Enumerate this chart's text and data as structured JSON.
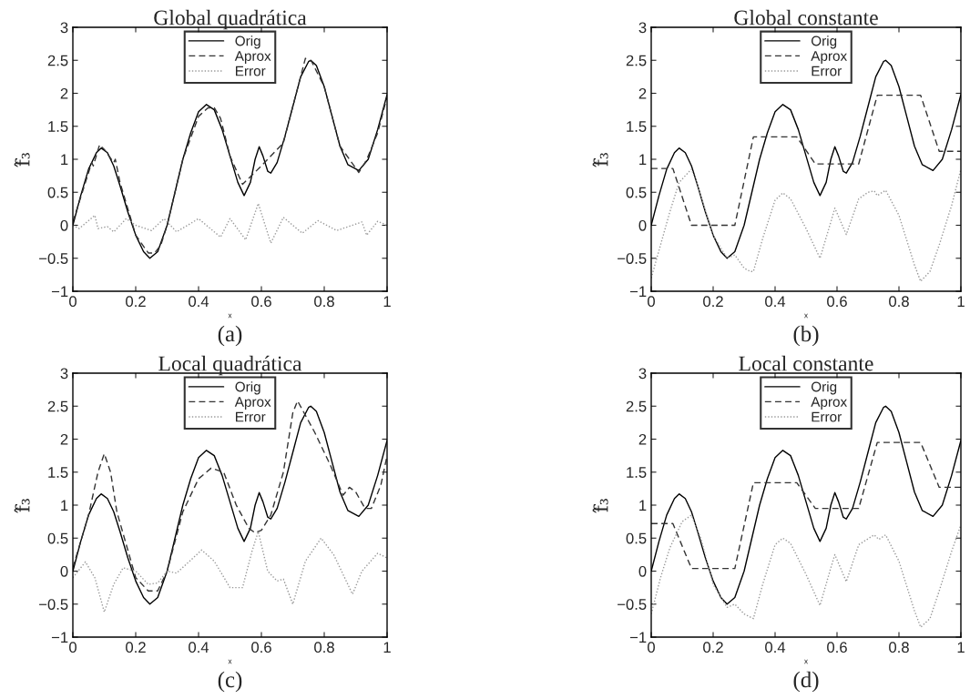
{
  "chart_data": [
    {
      "type": "line",
      "title": "Global quadrática",
      "ylabel": "f̂₃",
      "xlabel": "x",
      "annotations": [
        "(a)"
      ],
      "legend": "top",
      "grid": false,
      "xlim": [
        0,
        1
      ],
      "ylim": [
        -1,
        3
      ],
      "xticks": [
        0,
        0.2,
        0.4,
        0.6,
        0.8,
        1
      ],
      "yticks": [
        -1,
        -0.5,
        0,
        0.5,
        1,
        1.5,
        2,
        2.5,
        3
      ],
      "series": [
        {
          "name": "Orig",
          "color": "#000000",
          "line_style": "solid",
          "x": [
            0,
            0.025,
            0.05,
            0.075,
            0.09,
            0.11,
            0.13,
            0.15,
            0.175,
            0.2,
            0.225,
            0.245,
            0.27,
            0.3,
            0.325,
            0.35,
            0.375,
            0.4,
            0.425,
            0.45,
            0.475,
            0.5,
            0.525,
            0.545,
            0.565,
            0.58,
            0.593,
            0.605,
            0.62,
            0.63,
            0.65,
            0.675,
            0.7,
            0.725,
            0.75,
            0.757,
            0.775,
            0.8,
            0.825,
            0.85,
            0.875,
            0.91,
            0.94,
            0.97,
            1.0
          ],
          "values": [
            0.0,
            0.45,
            0.85,
            1.1,
            1.17,
            1.1,
            0.9,
            0.6,
            0.2,
            -0.15,
            -0.4,
            -0.5,
            -0.4,
            0.0,
            0.5,
            1.0,
            1.4,
            1.72,
            1.83,
            1.75,
            1.45,
            1.05,
            0.65,
            0.45,
            0.65,
            1.0,
            1.19,
            1.05,
            0.82,
            0.79,
            0.95,
            1.35,
            1.8,
            2.25,
            2.48,
            2.5,
            2.42,
            2.1,
            1.65,
            1.2,
            0.92,
            0.83,
            1.0,
            1.45,
            1.98
          ]
        },
        {
          "name": "Aprox",
          "color": "#333333",
          "line_style": "dashed",
          "x": [
            0,
            0.03,
            0.06,
            0.065,
            0.085,
            0.1,
            0.13,
            0.135,
            0.15,
            0.2,
            0.24,
            0.26,
            0.28,
            0.3,
            0.35,
            0.4,
            0.43,
            0.45,
            0.47,
            0.5,
            0.54,
            0.6,
            0.67,
            0.7,
            0.74,
            0.76,
            0.8,
            0.85,
            0.91,
            0.93,
            0.94,
            0.97,
            1.0
          ],
          "values": [
            0.05,
            0.5,
            0.95,
            0.9,
            1.22,
            1.15,
            0.95,
            1.0,
            0.65,
            -0.15,
            -0.42,
            -0.42,
            -0.3,
            0.0,
            1.0,
            1.65,
            1.78,
            1.78,
            1.62,
            1.05,
            0.62,
            0.9,
            1.25,
            1.8,
            2.53,
            2.48,
            2.1,
            1.2,
            0.8,
            0.95,
            1.05,
            1.4,
            1.95
          ]
        },
        {
          "name": "Error",
          "color": "#999999",
          "line_style": "dotted",
          "x": [
            0,
            0.02,
            0.07,
            0.08,
            0.11,
            0.13,
            0.17,
            0.2,
            0.25,
            0.29,
            0.33,
            0.4,
            0.47,
            0.5,
            0.55,
            0.59,
            0.63,
            0.67,
            0.73,
            0.78,
            0.84,
            0.92,
            0.935,
            0.97,
            1.0
          ],
          "values": [
            0.0,
            -0.05,
            0.15,
            -0.05,
            -0.02,
            -0.1,
            0.1,
            0.0,
            -0.08,
            0.1,
            -0.1,
            0.1,
            -0.18,
            0.1,
            -0.22,
            0.33,
            -0.27,
            0.12,
            -0.12,
            0.07,
            -0.08,
            0.05,
            -0.15,
            0.06,
            0.0
          ]
        }
      ]
    },
    {
      "type": "line",
      "title": "Global constante",
      "ylabel": "f̂₃",
      "xlabel": "x",
      "annotations": [
        "(b)"
      ],
      "legend": "top",
      "grid": false,
      "xlim": [
        0,
        1
      ],
      "ylim": [
        -1,
        3
      ],
      "xticks": [
        0,
        0.2,
        0.4,
        0.6,
        0.8,
        1
      ],
      "yticks": [
        -1,
        -0.5,
        0,
        0.5,
        1,
        1.5,
        2,
        2.5,
        3
      ],
      "series": [
        {
          "name": "Orig",
          "color": "#000000",
          "line_style": "solid",
          "x": [
            0,
            0.025,
            0.05,
            0.075,
            0.09,
            0.11,
            0.13,
            0.15,
            0.175,
            0.2,
            0.225,
            0.245,
            0.27,
            0.3,
            0.325,
            0.35,
            0.375,
            0.4,
            0.425,
            0.45,
            0.475,
            0.5,
            0.525,
            0.545,
            0.565,
            0.58,
            0.593,
            0.605,
            0.62,
            0.63,
            0.65,
            0.675,
            0.7,
            0.725,
            0.75,
            0.757,
            0.775,
            0.8,
            0.825,
            0.85,
            0.875,
            0.91,
            0.94,
            0.97,
            1.0
          ],
          "values": [
            0.0,
            0.45,
            0.85,
            1.1,
            1.17,
            1.1,
            0.9,
            0.6,
            0.2,
            -0.15,
            -0.4,
            -0.5,
            -0.4,
            0.0,
            0.5,
            1.0,
            1.4,
            1.72,
            1.83,
            1.75,
            1.45,
            1.05,
            0.65,
            0.45,
            0.65,
            1.0,
            1.19,
            1.05,
            0.82,
            0.79,
            0.95,
            1.35,
            1.8,
            2.25,
            2.48,
            2.5,
            2.42,
            2.1,
            1.65,
            1.2,
            0.92,
            0.83,
            1.0,
            1.45,
            1.98
          ]
        },
        {
          "name": "Aprox",
          "color": "#333333",
          "line_style": "dashed",
          "x": [
            0,
            0.07,
            0.13,
            0.27,
            0.33,
            0.47,
            0.53,
            0.67,
            0.73,
            0.87,
            0.93,
            1.0
          ],
          "values": [
            0.86,
            0.86,
            0.0,
            0.0,
            1.34,
            1.34,
            0.93,
            0.93,
            1.97,
            1.97,
            1.12,
            1.12
          ]
        },
        {
          "name": "Error",
          "color": "#999999",
          "line_style": "dotted",
          "x": [
            0,
            0.03,
            0.06,
            0.09,
            0.13,
            0.15,
            0.2,
            0.245,
            0.27,
            0.3,
            0.32,
            0.33,
            0.36,
            0.4,
            0.425,
            0.45,
            0.5,
            0.545,
            0.58,
            0.593,
            0.63,
            0.67,
            0.7,
            0.72,
            0.73,
            0.757,
            0.8,
            0.85,
            0.87,
            0.9,
            0.93,
            0.97,
            1.0
          ],
          "values": [
            -0.8,
            -0.3,
            0.2,
            0.65,
            0.85,
            0.6,
            -0.15,
            -0.5,
            -0.45,
            -0.65,
            -0.7,
            -0.7,
            -0.2,
            0.38,
            0.49,
            0.4,
            -0.05,
            -0.5,
            0.05,
            0.26,
            -0.14,
            0.4,
            0.5,
            0.52,
            0.45,
            0.53,
            0.15,
            -0.6,
            -0.85,
            -0.7,
            -0.3,
            0.3,
            0.85
          ]
        }
      ]
    },
    {
      "type": "line",
      "title": "Local quadrática",
      "ylabel": "f̂₃",
      "xlabel": "x",
      "annotations": [
        "(c)"
      ],
      "legend": "top",
      "grid": false,
      "xlim": [
        0,
        1
      ],
      "ylim": [
        -1,
        3
      ],
      "xticks": [
        0,
        0.2,
        0.4,
        0.6,
        0.8,
        1
      ],
      "yticks": [
        -1,
        -0.5,
        0,
        0.5,
        1,
        1.5,
        2,
        2.5,
        3
      ],
      "series": [
        {
          "name": "Orig",
          "color": "#000000",
          "line_style": "solid",
          "x": [
            0,
            0.025,
            0.05,
            0.075,
            0.09,
            0.11,
            0.13,
            0.15,
            0.175,
            0.2,
            0.225,
            0.245,
            0.27,
            0.3,
            0.325,
            0.35,
            0.375,
            0.4,
            0.425,
            0.45,
            0.475,
            0.5,
            0.525,
            0.545,
            0.565,
            0.58,
            0.593,
            0.605,
            0.62,
            0.63,
            0.65,
            0.675,
            0.7,
            0.725,
            0.75,
            0.757,
            0.775,
            0.8,
            0.825,
            0.85,
            0.875,
            0.91,
            0.94,
            0.97,
            1.0
          ],
          "values": [
            0.0,
            0.45,
            0.85,
            1.1,
            1.17,
            1.1,
            0.9,
            0.6,
            0.2,
            -0.15,
            -0.4,
            -0.5,
            -0.4,
            0.0,
            0.5,
            1.0,
            1.4,
            1.72,
            1.83,
            1.75,
            1.45,
            1.05,
            0.65,
            0.45,
            0.65,
            1.0,
            1.19,
            1.05,
            0.82,
            0.79,
            0.95,
            1.35,
            1.8,
            2.25,
            2.48,
            2.5,
            2.42,
            2.1,
            1.65,
            1.2,
            0.92,
            0.83,
            1.0,
            1.45,
            1.98
          ]
        },
        {
          "name": "Aprox",
          "color": "#333333",
          "line_style": "dashed",
          "x": [
            0,
            0.05,
            0.08,
            0.1,
            0.12,
            0.14,
            0.2,
            0.24,
            0.27,
            0.3,
            0.35,
            0.4,
            0.44,
            0.48,
            0.52,
            0.56,
            0.58,
            0.6,
            0.63,
            0.67,
            0.7,
            0.715,
            0.73,
            0.77,
            0.82,
            0.86,
            0.88,
            0.9,
            0.93,
            0.95,
            0.98,
            1.0
          ],
          "values": [
            0.05,
            0.85,
            1.5,
            1.78,
            1.5,
            0.9,
            -0.1,
            -0.3,
            -0.3,
            0.0,
            0.9,
            1.4,
            1.56,
            1.5,
            1.0,
            0.65,
            0.58,
            0.62,
            0.85,
            1.5,
            2.4,
            2.58,
            2.45,
            2.1,
            1.6,
            1.15,
            1.27,
            1.2,
            0.95,
            0.95,
            1.3,
            1.75
          ]
        },
        {
          "name": "Error",
          "color": "#999999",
          "line_style": "dotted",
          "x": [
            0,
            0.04,
            0.07,
            0.1,
            0.13,
            0.16,
            0.2,
            0.24,
            0.27,
            0.3,
            0.33,
            0.36,
            0.41,
            0.45,
            0.5,
            0.54,
            0.57,
            0.59,
            0.62,
            0.65,
            0.67,
            0.7,
            0.74,
            0.79,
            0.83,
            0.89,
            0.92,
            0.97,
            1.0
          ],
          "values": [
            -0.1,
            0.14,
            -0.1,
            -0.62,
            -0.2,
            0.05,
            0.0,
            -0.2,
            -0.18,
            0.0,
            -0.03,
            0.1,
            0.32,
            0.15,
            -0.25,
            -0.25,
            0.3,
            0.6,
            0.0,
            -0.15,
            -0.12,
            -0.5,
            0.15,
            0.5,
            0.25,
            -0.35,
            0.0,
            0.27,
            0.2
          ]
        }
      ]
    },
    {
      "type": "line",
      "title": "Local constante",
      "ylabel": "f̂₃",
      "xlabel": "x",
      "annotations": [
        "(d)"
      ],
      "legend": "top",
      "grid": false,
      "xlim": [
        0,
        1
      ],
      "ylim": [
        -1,
        3
      ],
      "xticks": [
        0,
        0.2,
        0.4,
        0.6,
        0.8,
        1
      ],
      "yticks": [
        -1,
        -0.5,
        0,
        0.5,
        1,
        1.5,
        2,
        2.5,
        3
      ],
      "series": [
        {
          "name": "Orig",
          "color": "#000000",
          "line_style": "solid",
          "x": [
            0,
            0.025,
            0.05,
            0.075,
            0.09,
            0.11,
            0.13,
            0.15,
            0.175,
            0.2,
            0.225,
            0.245,
            0.27,
            0.3,
            0.325,
            0.35,
            0.375,
            0.4,
            0.425,
            0.45,
            0.475,
            0.5,
            0.525,
            0.545,
            0.565,
            0.58,
            0.593,
            0.605,
            0.62,
            0.63,
            0.65,
            0.675,
            0.7,
            0.725,
            0.75,
            0.757,
            0.775,
            0.8,
            0.825,
            0.85,
            0.875,
            0.91,
            0.94,
            0.97,
            1.0
          ],
          "values": [
            0.0,
            0.45,
            0.85,
            1.1,
            1.17,
            1.1,
            0.9,
            0.6,
            0.2,
            -0.15,
            -0.4,
            -0.5,
            -0.4,
            0.0,
            0.5,
            1.0,
            1.4,
            1.72,
            1.83,
            1.75,
            1.45,
            1.05,
            0.65,
            0.45,
            0.65,
            1.0,
            1.19,
            1.05,
            0.82,
            0.79,
            0.95,
            1.35,
            1.8,
            2.25,
            2.48,
            2.5,
            2.42,
            2.1,
            1.65,
            1.2,
            0.92,
            0.83,
            1.0,
            1.45,
            1.98
          ]
        },
        {
          "name": "Aprox",
          "color": "#333333",
          "line_style": "dashed",
          "x": [
            0,
            0.07,
            0.13,
            0.27,
            0.33,
            0.47,
            0.53,
            0.67,
            0.73,
            0.87,
            0.93,
            1.0
          ],
          "values": [
            0.72,
            0.72,
            0.04,
            0.04,
            1.34,
            1.34,
            0.95,
            0.95,
            1.95,
            1.95,
            1.27,
            1.27
          ]
        },
        {
          "name": "Error",
          "color": "#999999",
          "line_style": "dotted",
          "x": [
            0,
            0.03,
            0.06,
            0.1,
            0.13,
            0.16,
            0.2,
            0.245,
            0.27,
            0.3,
            0.33,
            0.36,
            0.4,
            0.425,
            0.45,
            0.5,
            0.545,
            0.58,
            0.593,
            0.63,
            0.67,
            0.72,
            0.735,
            0.757,
            0.8,
            0.85,
            0.87,
            0.9,
            0.93,
            0.97,
            1.0
          ],
          "values": [
            -0.65,
            -0.1,
            0.35,
            0.75,
            0.85,
            0.5,
            -0.2,
            -0.55,
            -0.5,
            -0.65,
            -0.72,
            -0.2,
            0.4,
            0.5,
            0.42,
            -0.05,
            -0.52,
            0.05,
            0.25,
            -0.16,
            0.4,
            0.55,
            0.48,
            0.55,
            0.15,
            -0.6,
            -0.85,
            -0.72,
            -0.3,
            0.3,
            0.7
          ]
        }
      ]
    }
  ]
}
